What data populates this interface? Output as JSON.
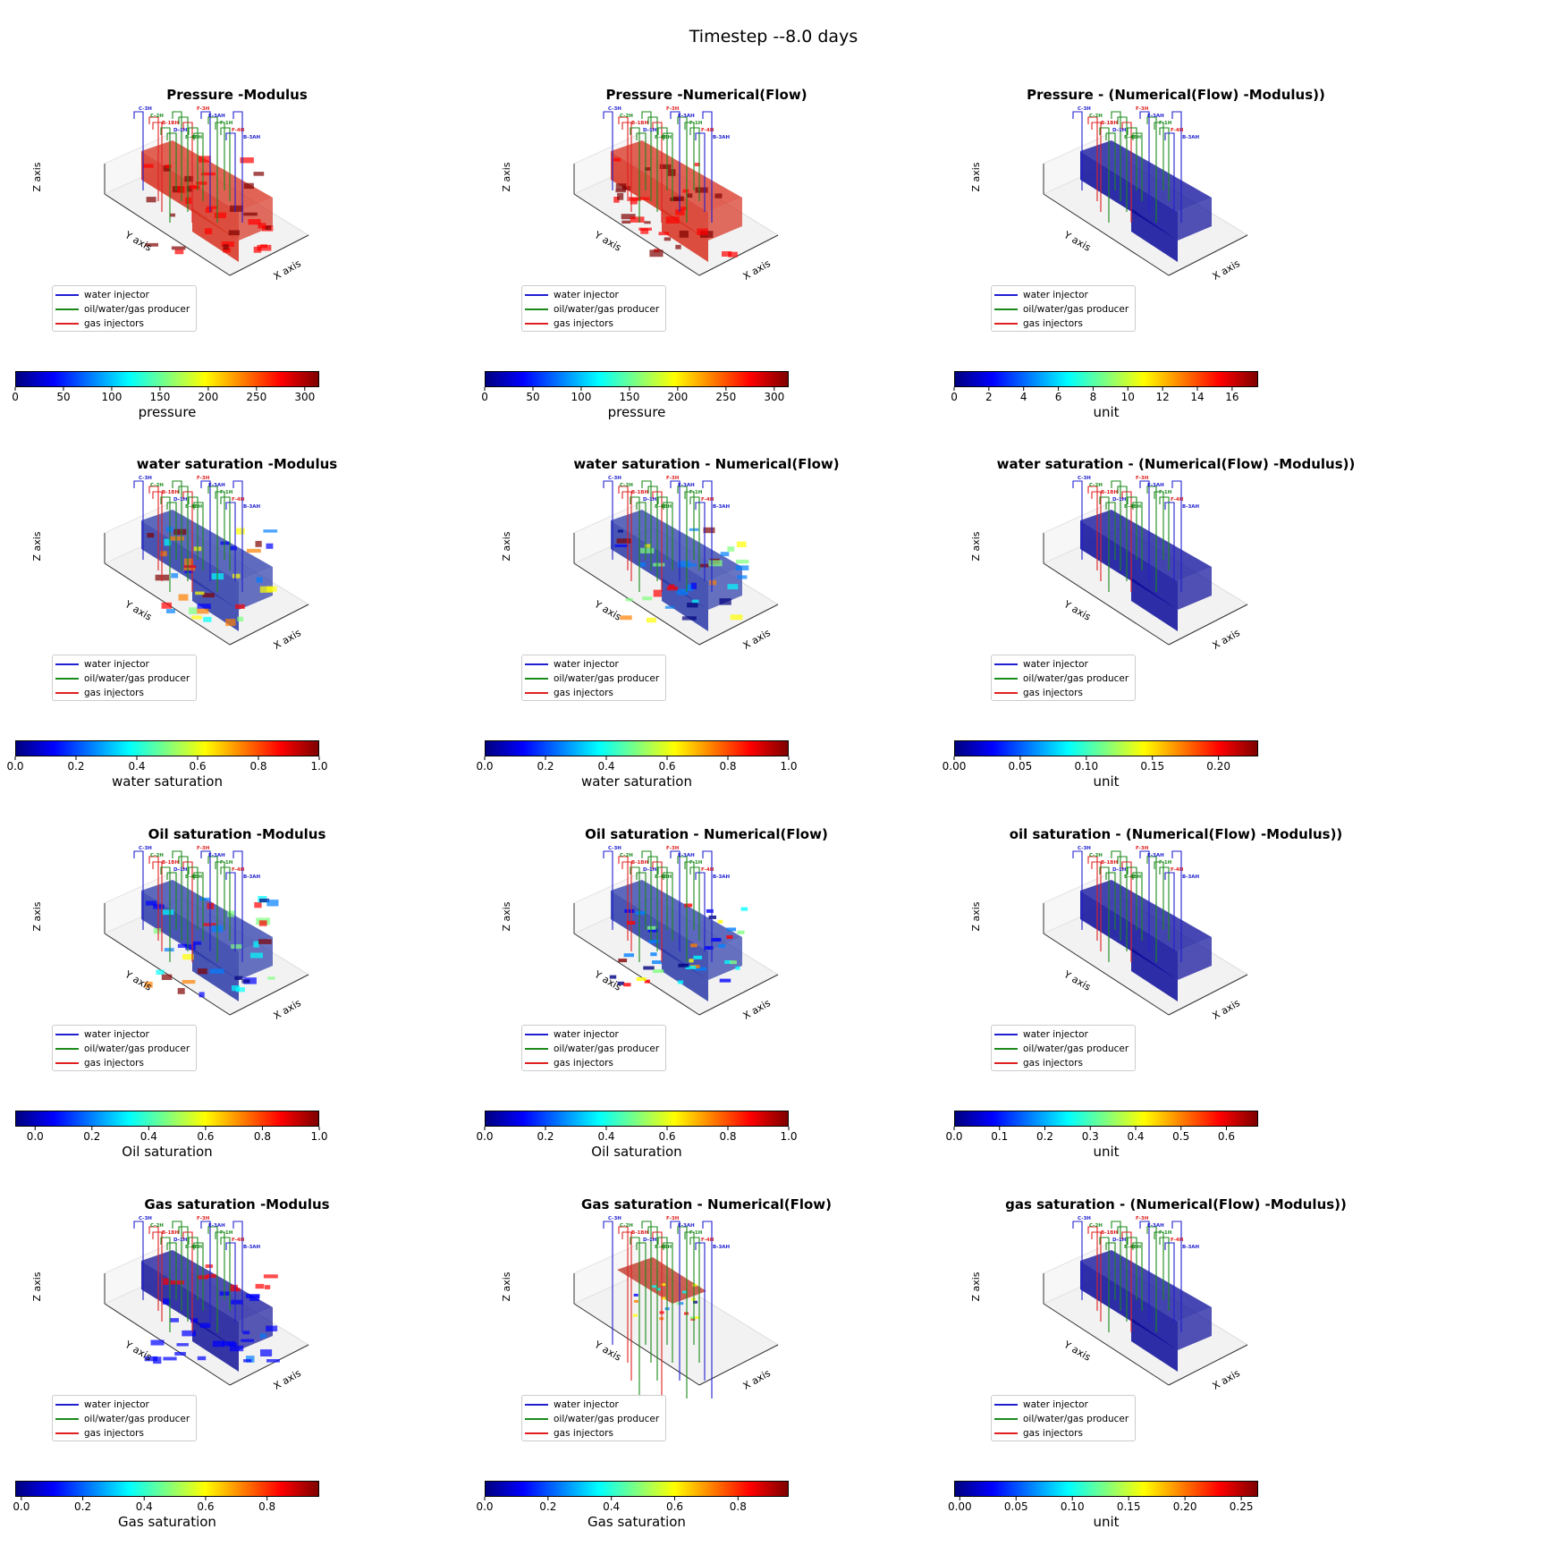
{
  "suptitle": "Timestep --8.0 days",
  "legend": {
    "items": [
      {
        "label": "water injector",
        "color": "#1f1fd0"
      },
      {
        "label": "oil/water/gas producer",
        "color": "#1a8a1a"
      },
      {
        "label": "gas injectors",
        "color": "#e02020"
      }
    ]
  },
  "axis_labels": {
    "x": "X axis",
    "y": "Y axis",
    "z": "Z axis"
  },
  "well_labels": [
    "C-3H",
    "C-2H",
    "B-1BH",
    "D-1H",
    "B-4BH",
    "F-3H",
    "E-3AH",
    "F-1H",
    "F-4H",
    "B-3AH"
  ],
  "colormap": "jet",
  "chart_data": [
    {
      "type": "heatmap",
      "title": "Pressure -Modulus",
      "colorbar_label": "pressure",
      "vmin": 0,
      "vmax": 315,
      "ticks": [
        "0",
        "50",
        "100",
        "150",
        "200",
        "250",
        "300"
      ],
      "tick_values": [
        0,
        50,
        100,
        150,
        200,
        250,
        300
      ],
      "fill": "pressure"
    },
    {
      "type": "heatmap",
      "title": "Pressure -Numerical(Flow)",
      "colorbar_label": "pressure",
      "vmin": 0,
      "vmax": 315,
      "ticks": [
        "0",
        "50",
        "100",
        "150",
        "200",
        "250",
        "300"
      ],
      "tick_values": [
        0,
        50,
        100,
        150,
        200,
        250,
        300
      ],
      "fill": "pressure"
    },
    {
      "type": "heatmap",
      "title": "Pressure - (Numerical(Flow) -Modulus))",
      "colorbar_label": "unit",
      "vmin": 0,
      "vmax": 17.5,
      "ticks": [
        "0",
        "2",
        "4",
        "6",
        "8",
        "10",
        "12",
        "14",
        "16"
      ],
      "tick_values": [
        0,
        2,
        4,
        6,
        8,
        10,
        12,
        14,
        16
      ],
      "fill": "low"
    },
    {
      "type": "heatmap",
      "title": "water saturation -Modulus",
      "colorbar_label": "water saturation",
      "vmin": 0,
      "vmax": 1.0,
      "ticks": [
        "0.0",
        "0.2",
        "0.4",
        "0.6",
        "0.8",
        "1.0"
      ],
      "tick_values": [
        0,
        0.2,
        0.4,
        0.6,
        0.8,
        1.0
      ],
      "fill": "mixed"
    },
    {
      "type": "heatmap",
      "title": "water saturation - Numerical(Flow)",
      "colorbar_label": "water saturation",
      "vmin": 0,
      "vmax": 1.0,
      "ticks": [
        "0.0",
        "0.2",
        "0.4",
        "0.6",
        "0.8",
        "1.0"
      ],
      "tick_values": [
        0,
        0.2,
        0.4,
        0.6,
        0.8,
        1.0
      ],
      "fill": "mixed"
    },
    {
      "type": "heatmap",
      "title": "water saturation - (Numerical(Flow) -Modulus))",
      "colorbar_label": "unit",
      "vmin": 0,
      "vmax": 0.23,
      "ticks": [
        "0.00",
        "0.05",
        "0.10",
        "0.15",
        "0.20"
      ],
      "tick_values": [
        0,
        0.05,
        0.1,
        0.15,
        0.2
      ],
      "fill": "low"
    },
    {
      "type": "heatmap",
      "title": "Oil saturation -Modulus",
      "colorbar_label": "Oil saturation",
      "vmin": -0.07,
      "vmax": 1.0,
      "ticks": [
        "0.0",
        "0.2",
        "0.4",
        "0.6",
        "0.8",
        "1.0"
      ],
      "tick_values": [
        0,
        0.2,
        0.4,
        0.6,
        0.8,
        1.0
      ],
      "fill": "mixed"
    },
    {
      "type": "heatmap",
      "title": "Oil saturation - Numerical(Flow)",
      "colorbar_label": "Oil saturation",
      "vmin": 0,
      "vmax": 1.0,
      "ticks": [
        "0.0",
        "0.2",
        "0.4",
        "0.6",
        "0.8",
        "1.0"
      ],
      "tick_values": [
        0,
        0.2,
        0.4,
        0.6,
        0.8,
        1.0
      ],
      "fill": "sparse"
    },
    {
      "type": "heatmap",
      "title": "oil saturation - (Numerical(Flow) -Modulus))",
      "colorbar_label": "unit",
      "vmin": 0,
      "vmax": 0.67,
      "ticks": [
        "0.0",
        "0.1",
        "0.2",
        "0.3",
        "0.4",
        "0.5",
        "0.6"
      ],
      "tick_values": [
        0,
        0.1,
        0.2,
        0.3,
        0.4,
        0.5,
        0.6
      ],
      "fill": "low"
    },
    {
      "type": "heatmap",
      "title": "Gas saturation -Modulus",
      "colorbar_label": "Gas saturation",
      "vmin": -0.02,
      "vmax": 0.97,
      "ticks": [
        "0.0",
        "0.2",
        "0.4",
        "0.6",
        "0.8"
      ],
      "tick_values": [
        0,
        0.2,
        0.4,
        0.6,
        0.8
      ],
      "fill": "gas"
    },
    {
      "type": "heatmap",
      "title": "Gas saturation - Numerical(Flow)",
      "colorbar_label": "Gas saturation",
      "vmin": 0,
      "vmax": 0.96,
      "ticks": [
        "0.0",
        "0.2",
        "0.4",
        "0.6",
        "0.8"
      ],
      "tick_values": [
        0,
        0.2,
        0.4,
        0.6,
        0.8
      ],
      "fill": "gasflow"
    },
    {
      "type": "heatmap",
      "title": "gas saturation - (Numerical(Flow) -Modulus))",
      "colorbar_label": "unit",
      "vmin": -0.005,
      "vmax": 0.265,
      "ticks": [
        "0.00",
        "0.05",
        "0.10",
        "0.15",
        "0.20",
        "0.25"
      ],
      "tick_values": [
        0,
        0.05,
        0.1,
        0.15,
        0.2,
        0.25
      ],
      "fill": "low"
    }
  ]
}
